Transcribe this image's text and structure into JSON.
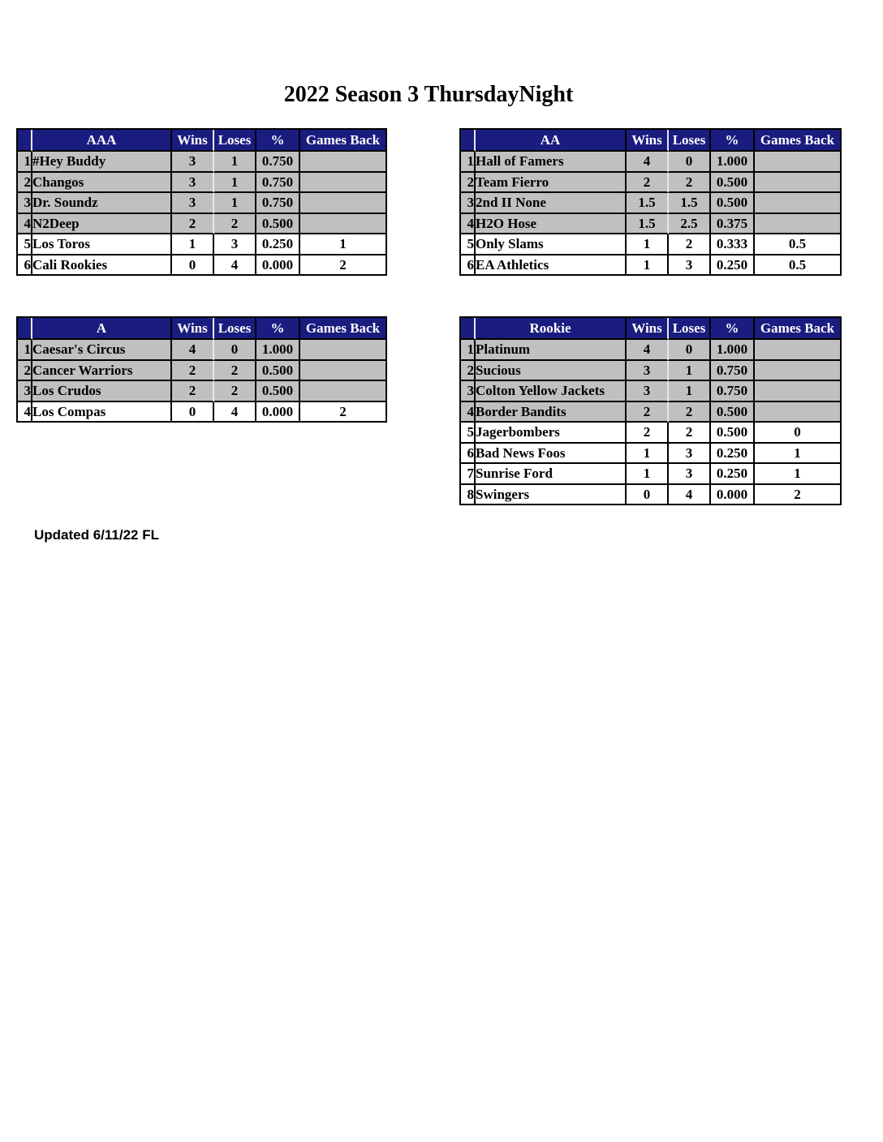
{
  "page": {
    "title": "2022 Season 3 ThursdayNight",
    "updated_note": "Updated 6/11/22 FL"
  },
  "colors": {
    "header_bg": "#1a1c80",
    "header_text": "#ffffff",
    "row_shaded": "#c0c0c3",
    "row_plain": "#ffffff",
    "grid_dark": "#000000",
    "grid_light": "#e8e8e8"
  },
  "column_headers": [
    "Wins",
    "Loses",
    "%",
    "Games Back"
  ],
  "tables": [
    {
      "division": "AAA",
      "teams": [
        {
          "rank": "1",
          "name": "#Hey Buddy",
          "wins": "3",
          "loses": "1",
          "pct": "0.750",
          "games_back": "",
          "shaded": true
        },
        {
          "rank": "2",
          "name": "Changos",
          "wins": "3",
          "loses": "1",
          "pct": "0.750",
          "games_back": "",
          "shaded": true
        },
        {
          "rank": "3",
          "name": "Dr. Soundz",
          "wins": "3",
          "loses": "1",
          "pct": "0.750",
          "games_back": "",
          "shaded": true
        },
        {
          "rank": "4",
          "name": "N2Deep",
          "wins": "2",
          "loses": "2",
          "pct": "0.500",
          "games_back": "",
          "shaded": true
        },
        {
          "rank": "5",
          "name": "Los Toros",
          "wins": "1",
          "loses": "3",
          "pct": "0.250",
          "games_back": "1",
          "shaded": false
        },
        {
          "rank": "6",
          "name": "Cali Rookies",
          "wins": "0",
          "loses": "4",
          "pct": "0.000",
          "games_back": "2",
          "shaded": false
        }
      ]
    },
    {
      "division": "AA",
      "teams": [
        {
          "rank": "1",
          "name": "Hall of Famers",
          "wins": "4",
          "loses": "0",
          "pct": "1.000",
          "games_back": "",
          "shaded": true
        },
        {
          "rank": "2",
          "name": "Team Fierro",
          "wins": "2",
          "loses": "2",
          "pct": "0.500",
          "games_back": "",
          "shaded": true
        },
        {
          "rank": "3",
          "name": "2nd II None",
          "wins": "1.5",
          "loses": "1.5",
          "pct": "0.500",
          "games_back": "",
          "shaded": true
        },
        {
          "rank": "4",
          "name": "H2O Hose",
          "wins": "1.5",
          "loses": "2.5",
          "pct": "0.375",
          "games_back": "",
          "shaded": true
        },
        {
          "rank": "5",
          "name": "Only Slams",
          "wins": "1",
          "loses": "2",
          "pct": "0.333",
          "games_back": "0.5",
          "shaded": false
        },
        {
          "rank": "6",
          "name": "EA Athletics",
          "wins": "1",
          "loses": "3",
          "pct": "0.250",
          "games_back": "0.5",
          "shaded": false
        }
      ]
    },
    {
      "division": "A",
      "teams": [
        {
          "rank": "1",
          "name": "Caesar's Circus",
          "wins": "4",
          "loses": "0",
          "pct": "1.000",
          "games_back": "",
          "shaded": true
        },
        {
          "rank": "2",
          "name": "Cancer Warriors",
          "wins": "2",
          "loses": "2",
          "pct": "0.500",
          "games_back": "",
          "shaded": true
        },
        {
          "rank": "3",
          "name": "Los Crudos",
          "wins": "2",
          "loses": "2",
          "pct": "0.500",
          "games_back": "",
          "shaded": true
        },
        {
          "rank": "4",
          "name": "Los Compas",
          "wins": "0",
          "loses": "4",
          "pct": "0.000",
          "games_back": "2",
          "shaded": false
        }
      ]
    },
    {
      "division": "Rookie",
      "teams": [
        {
          "rank": "1",
          "name": "Platinum",
          "wins": "4",
          "loses": "0",
          "pct": "1.000",
          "games_back": "",
          "shaded": true
        },
        {
          "rank": "2",
          "name": "Sucious",
          "wins": "3",
          "loses": "1",
          "pct": "0.750",
          "games_back": "",
          "shaded": true
        },
        {
          "rank": "3",
          "name": "Colton Yellow Jackets",
          "wins": "3",
          "loses": "1",
          "pct": "0.750",
          "games_back": "",
          "shaded": true
        },
        {
          "rank": "4",
          "name": "Border Bandits",
          "wins": "2",
          "loses": "2",
          "pct": "0.500",
          "games_back": "",
          "shaded": true
        },
        {
          "rank": "5",
          "name": "Jagerbombers",
          "wins": "2",
          "loses": "2",
          "pct": "0.500",
          "games_back": "0",
          "shaded": false
        },
        {
          "rank": "6",
          "name": "Bad News Foos",
          "wins": "1",
          "loses": "3",
          "pct": "0.250",
          "games_back": "1",
          "shaded": false
        },
        {
          "rank": "7",
          "name": "Sunrise Ford",
          "wins": "1",
          "loses": "3",
          "pct": "0.250",
          "games_back": "1",
          "shaded": false
        },
        {
          "rank": "8",
          "name": "Swingers",
          "wins": "0",
          "loses": "4",
          "pct": "0.000",
          "games_back": "2",
          "shaded": false
        }
      ]
    }
  ]
}
